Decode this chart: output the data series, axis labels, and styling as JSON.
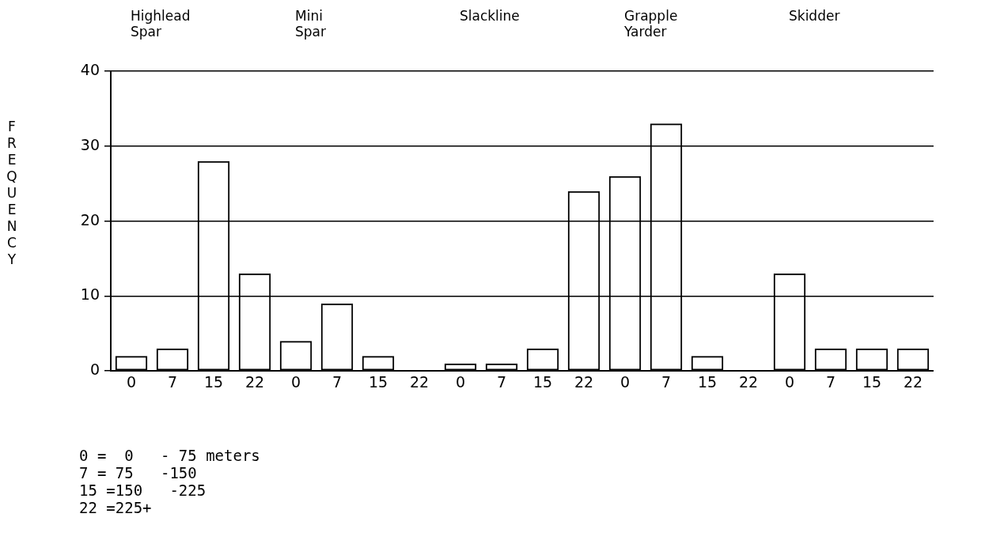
{
  "chart_data": [
    {
      "type": "bar",
      "title": "Highlead\nSpar",
      "ylabel": "FREQUENCY",
      "categories": [
        "0",
        "7",
        "15",
        "22"
      ],
      "values": [
        2,
        3,
        28,
        13
      ],
      "color": "#000000",
      "ylim": [
        0,
        40
      ],
      "yticks": [
        0,
        10,
        20,
        30,
        40
      ],
      "grid": "y",
      "annotations": [
        "0 =  0   - 75 meters",
        "7 = 75   -150",
        "15 =150   -225",
        "22 =225+"
      ]
    },
    {
      "type": "bar",
      "title": "Mini\nSpar",
      "categories": [
        "0",
        "7",
        "15",
        "22"
      ],
      "values": [
        4,
        9,
        2,
        0
      ],
      "color": "#000000",
      "ylim": [
        0,
        40
      ],
      "yticks": [
        0,
        10,
        20,
        30,
        40
      ],
      "grid": "y",
      "tick_labels": "x"
    },
    {
      "type": "bar",
      "title": "Slackline",
      "categories": [
        "0",
        "7",
        "15",
        "22"
      ],
      "values": [
        1,
        1,
        3,
        24
      ],
      "color": "#000000",
      "ylim": [
        0,
        40
      ],
      "yticks": [
        0,
        10,
        20,
        30,
        40
      ],
      "grid": "y",
      "tick_labels": "x"
    },
    {
      "type": "bar",
      "title": "Grapple\nYarder",
      "categories": [
        "0",
        "7",
        "15",
        "22"
      ],
      "values": [
        26,
        33,
        2,
        0
      ],
      "color": "#000000",
      "ylim": [
        0,
        40
      ],
      "yticks": [
        0,
        10,
        20,
        30,
        40
      ],
      "grid": "y",
      "tick_labels": "x"
    },
    {
      "type": "bar",
      "title": "Skidder",
      "categories": [
        "0",
        "7",
        "15",
        "22"
      ],
      "values": [
        13,
        3,
        3,
        3
      ],
      "color": "#000000",
      "ylim": [
        0,
        40
      ],
      "yticks": [
        0,
        10,
        20,
        30,
        40
      ],
      "grid": "y",
      "tick_labels": "x"
    }
  ]
}
